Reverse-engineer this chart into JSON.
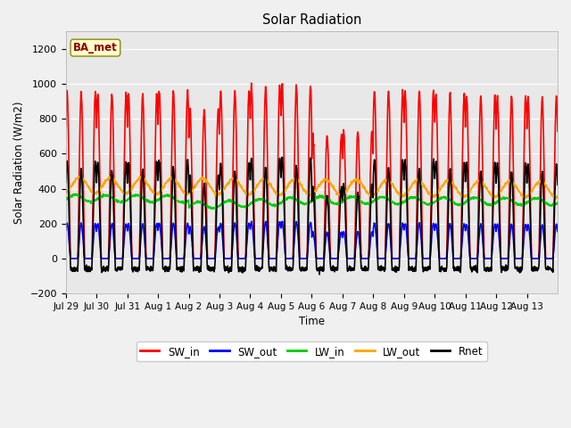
{
  "title": "Solar Radiation",
  "ylabel": "Solar Radiation (W/m2)",
  "xlabel": "Time",
  "ylim": [
    -200,
    1300
  ],
  "yticks": [
    -200,
    0,
    200,
    400,
    600,
    800,
    1000,
    1200
  ],
  "fig_bg_color": "#f0f0f0",
  "plot_bg_color": "#e8e8e8",
  "series": {
    "SW_in": {
      "color": "#ff0000",
      "lw": 1.2
    },
    "SW_out": {
      "color": "#0000ff",
      "lw": 1.2
    },
    "LW_in": {
      "color": "#00cc00",
      "lw": 1.2
    },
    "LW_out": {
      "color": "#ffa500",
      "lw": 1.2
    },
    "Rnet": {
      "color": "#000000",
      "lw": 1.2
    }
  },
  "legend_label": "BA_met",
  "n_days": 16,
  "sw_in_peaks": [
    950,
    940,
    940,
    960,
    855,
    960,
    990,
    990,
    700,
    730,
    960,
    960,
    940,
    930,
    930,
    920
  ],
  "xtick_labels": [
    "Jul 29",
    "Jul 30",
    "Jul 31",
    "Aug 1",
    "Aug 2",
    "Aug 3",
    "Aug 4",
    "Aug 5",
    "Aug 6",
    "Aug 7",
    "Aug 8",
    "Aug 9",
    "Aug 10",
    "Aug 11",
    "Aug 12",
    "Aug 13"
  ]
}
